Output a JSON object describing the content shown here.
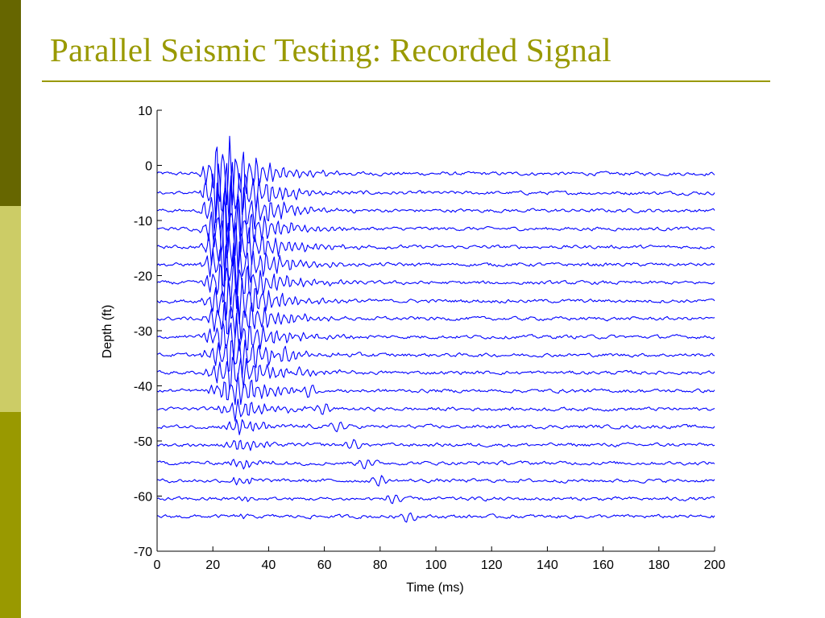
{
  "slide": {
    "title": "Parallel Seismic Testing: Recorded Signal"
  },
  "colors": {
    "title": "#999900",
    "rule": "#999900",
    "left_bar": [
      "#666600",
      "#cccc66",
      "#999900"
    ],
    "trace": "#0000ff",
    "axes": "#000000"
  },
  "chart_data": {
    "type": "line",
    "xlabel": "Time (ms)",
    "ylabel": "Depth (ft)",
    "xlim": [
      0,
      200
    ],
    "ylim": [
      -70,
      10
    ],
    "xticks": [
      0,
      20,
      40,
      60,
      80,
      100,
      120,
      140,
      160,
      180,
      200
    ],
    "yticks": [
      10,
      0,
      -10,
      -20,
      -30,
      -40,
      -50,
      -60,
      -70
    ],
    "grid": false,
    "legend": "none",
    "trace_time_range": [
      0,
      200
    ],
    "sample_interval_ms": 0.5,
    "trace_depths": [
      -1.5,
      -5,
      -8.2,
      -11.5,
      -14.8,
      -18,
      -21.3,
      -24.6,
      -27.8,
      -31.1,
      -34.4,
      -37.6,
      -40.9,
      -44.2,
      -47.4,
      -50.7,
      -54,
      -57.2,
      -60.5,
      -63.7
    ],
    "trace_arrivals": [
      {
        "onset_ms": 15,
        "peak_ms": 24,
        "duration_ms": 25,
        "amplitude_ft": 8.5
      },
      {
        "onset_ms": 15,
        "peak_ms": 24,
        "duration_ms": 26,
        "amplitude_ft": 8.5
      },
      {
        "onset_ms": 15,
        "peak_ms": 25,
        "duration_ms": 26,
        "amplitude_ft": 8.0
      },
      {
        "onset_ms": 15,
        "peak_ms": 25,
        "duration_ms": 26,
        "amplitude_ft": 7.5
      },
      {
        "onset_ms": 15,
        "peak_ms": 25,
        "duration_ms": 27,
        "amplitude_ft": 7.0
      },
      {
        "onset_ms": 15,
        "peak_ms": 26,
        "duration_ms": 27,
        "amplitude_ft": 6.5
      },
      {
        "onset_ms": 15,
        "peak_ms": 26,
        "duration_ms": 28,
        "amplitude_ft": 6.0
      },
      {
        "onset_ms": 15,
        "peak_ms": 27,
        "duration_ms": 28,
        "amplitude_ft": 5.5
      },
      {
        "onset_ms": 15,
        "peak_ms": 27,
        "duration_ms": 28,
        "amplitude_ft": 5.0
      },
      {
        "onset_ms": 15,
        "peak_ms": 27,
        "duration_ms": 28,
        "amplitude_ft": 4.8
      },
      {
        "onset_ms": 15,
        "peak_ms": 28,
        "duration_ms": 28,
        "amplitude_ft": 4.5
      },
      {
        "onset_ms": 15,
        "peak_ms": 28,
        "duration_ms": 27,
        "amplitude_ft": 4.0
      },
      {
        "onset_ms": 16,
        "peak_ms": 29,
        "duration_ms": 26,
        "amplitude_ft": 3.2
      },
      {
        "onset_ms": 20,
        "peak_ms": 29,
        "duration_ms": 22,
        "amplitude_ft": 2.4
      },
      {
        "onset_ms": 22,
        "peak_ms": 29,
        "duration_ms": 20,
        "amplitude_ft": 1.8
      },
      {
        "onset_ms": 22,
        "peak_ms": 30,
        "duration_ms": 18,
        "amplitude_ft": 1.4
      },
      {
        "onset_ms": 24,
        "peak_ms": 30,
        "duration_ms": 16,
        "amplitude_ft": 1.2
      },
      {
        "onset_ms": 25,
        "peak_ms": 30,
        "duration_ms": 14,
        "amplitude_ft": 0.9
      },
      {
        "onset_ms": 26,
        "peak_ms": 30,
        "duration_ms": 10,
        "amplitude_ft": 0.6
      },
      {
        "onset_ms": 26,
        "peak_ms": 30,
        "duration_ms": 8,
        "amplitude_ft": 0.4
      }
    ],
    "noise_amplitude_ft": 0.35
  }
}
